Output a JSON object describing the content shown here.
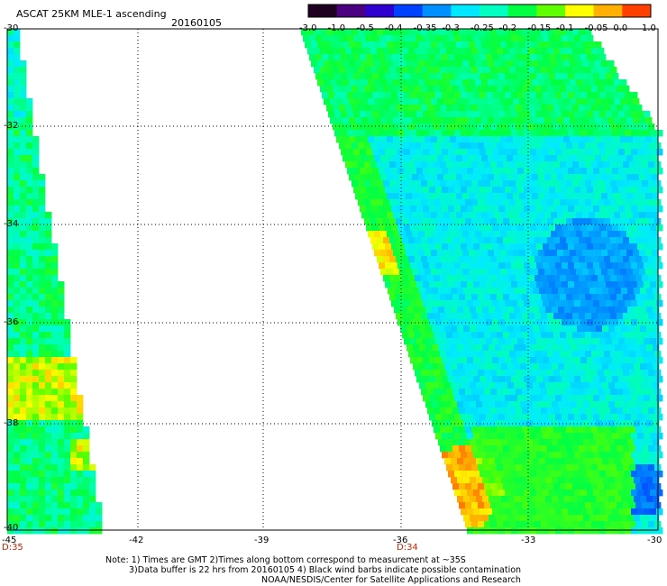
{
  "header": {
    "title": "ASCAT 25KM MLE-1 ascending",
    "date": "20160105"
  },
  "colorbar": {
    "labels": [
      "-3.0",
      "-1.0",
      "-0.5",
      "-0.4",
      "-0.35",
      "-0.3",
      "-0.25",
      "-0.2",
      "-0.15",
      "-0.1",
      "-0.05",
      "0.0",
      "1.0"
    ],
    "colors": [
      "#200020",
      "#4a0080",
      "#3000d0",
      "#0040ff",
      "#0090ff",
      "#00e8ff",
      "#00ffc0",
      "#00ff40",
      "#60ff00",
      "#ffff00",
      "#ffb000",
      "#ff4000"
    ]
  },
  "map": {
    "lat_labels": [
      "-30",
      "-32",
      "-34",
      "-36",
      "-38",
      "-40"
    ],
    "lon_labels": [
      "-45",
      "-42",
      "-39",
      "-36",
      "-33",
      "-30"
    ],
    "time_labels": [
      "D:35",
      "D:34"
    ]
  },
  "notes": {
    "line1": "Note: 1) Times are GMT 2)Times along bottom correspond to measurement at ~35S",
    "line2": "3)Data buffer is 22 hrs from 20160105 4) Black wind barbs indicate possible contamination",
    "line3": "NOAA/NESDIS/Center for Satellite Applications and Research"
  }
}
